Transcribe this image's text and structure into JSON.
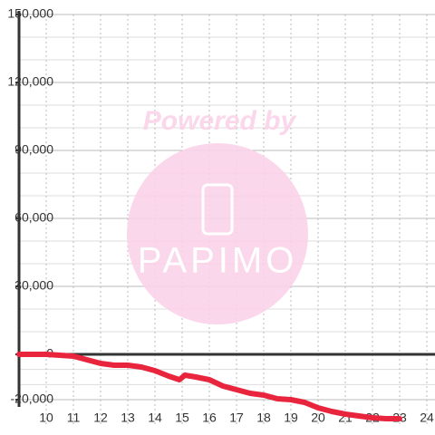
{
  "chart_data": {
    "type": "line",
    "watermark": {
      "top": "Powered by",
      "logo": "PAPIMO"
    },
    "x": [
      9,
      10,
      10.5,
      11,
      11.5,
      12,
      12.5,
      13,
      13.5,
      14,
      14.5,
      14.9,
      15.1,
      15.5,
      16,
      16.5,
      17,
      17.5,
      18,
      18.5,
      19,
      19.5,
      20,
      20.5,
      21,
      21.5,
      22,
      22.5,
      23
    ],
    "series": [
      {
        "color": "#e8253c",
        "values": [
          0,
          0,
          -400,
          -800,
          -2400,
          -4000,
          -4800,
          -4800,
          -5600,
          -7200,
          -9600,
          -11200,
          -9200,
          -10000,
          -11200,
          -14000,
          -15600,
          -17200,
          -18000,
          -19600,
          -20000,
          -21200,
          -23600,
          -25200,
          -26400,
          -27200,
          -28000,
          -28400,
          -28400
        ]
      }
    ],
    "xlim": [
      9,
      24.3
    ],
    "ylim": [
      -32000,
      150000
    ],
    "xticks": [
      10,
      11,
      12,
      13,
      14,
      15,
      16,
      17,
      18,
      19,
      20,
      21,
      22,
      23,
      24
    ],
    "yticks": [
      {
        "value": -20000,
        "label": "-20,000"
      },
      0,
      {
        "value": 30000,
        "label": "30,000"
      },
      {
        "value": 60000,
        "label": "60,000"
      },
      {
        "value": 90000,
        "label": "90,000"
      },
      {
        "value": 120000,
        "label": "120,000"
      },
      {
        "value": 150000,
        "label": "150,000"
      }
    ],
    "grid": true
  }
}
